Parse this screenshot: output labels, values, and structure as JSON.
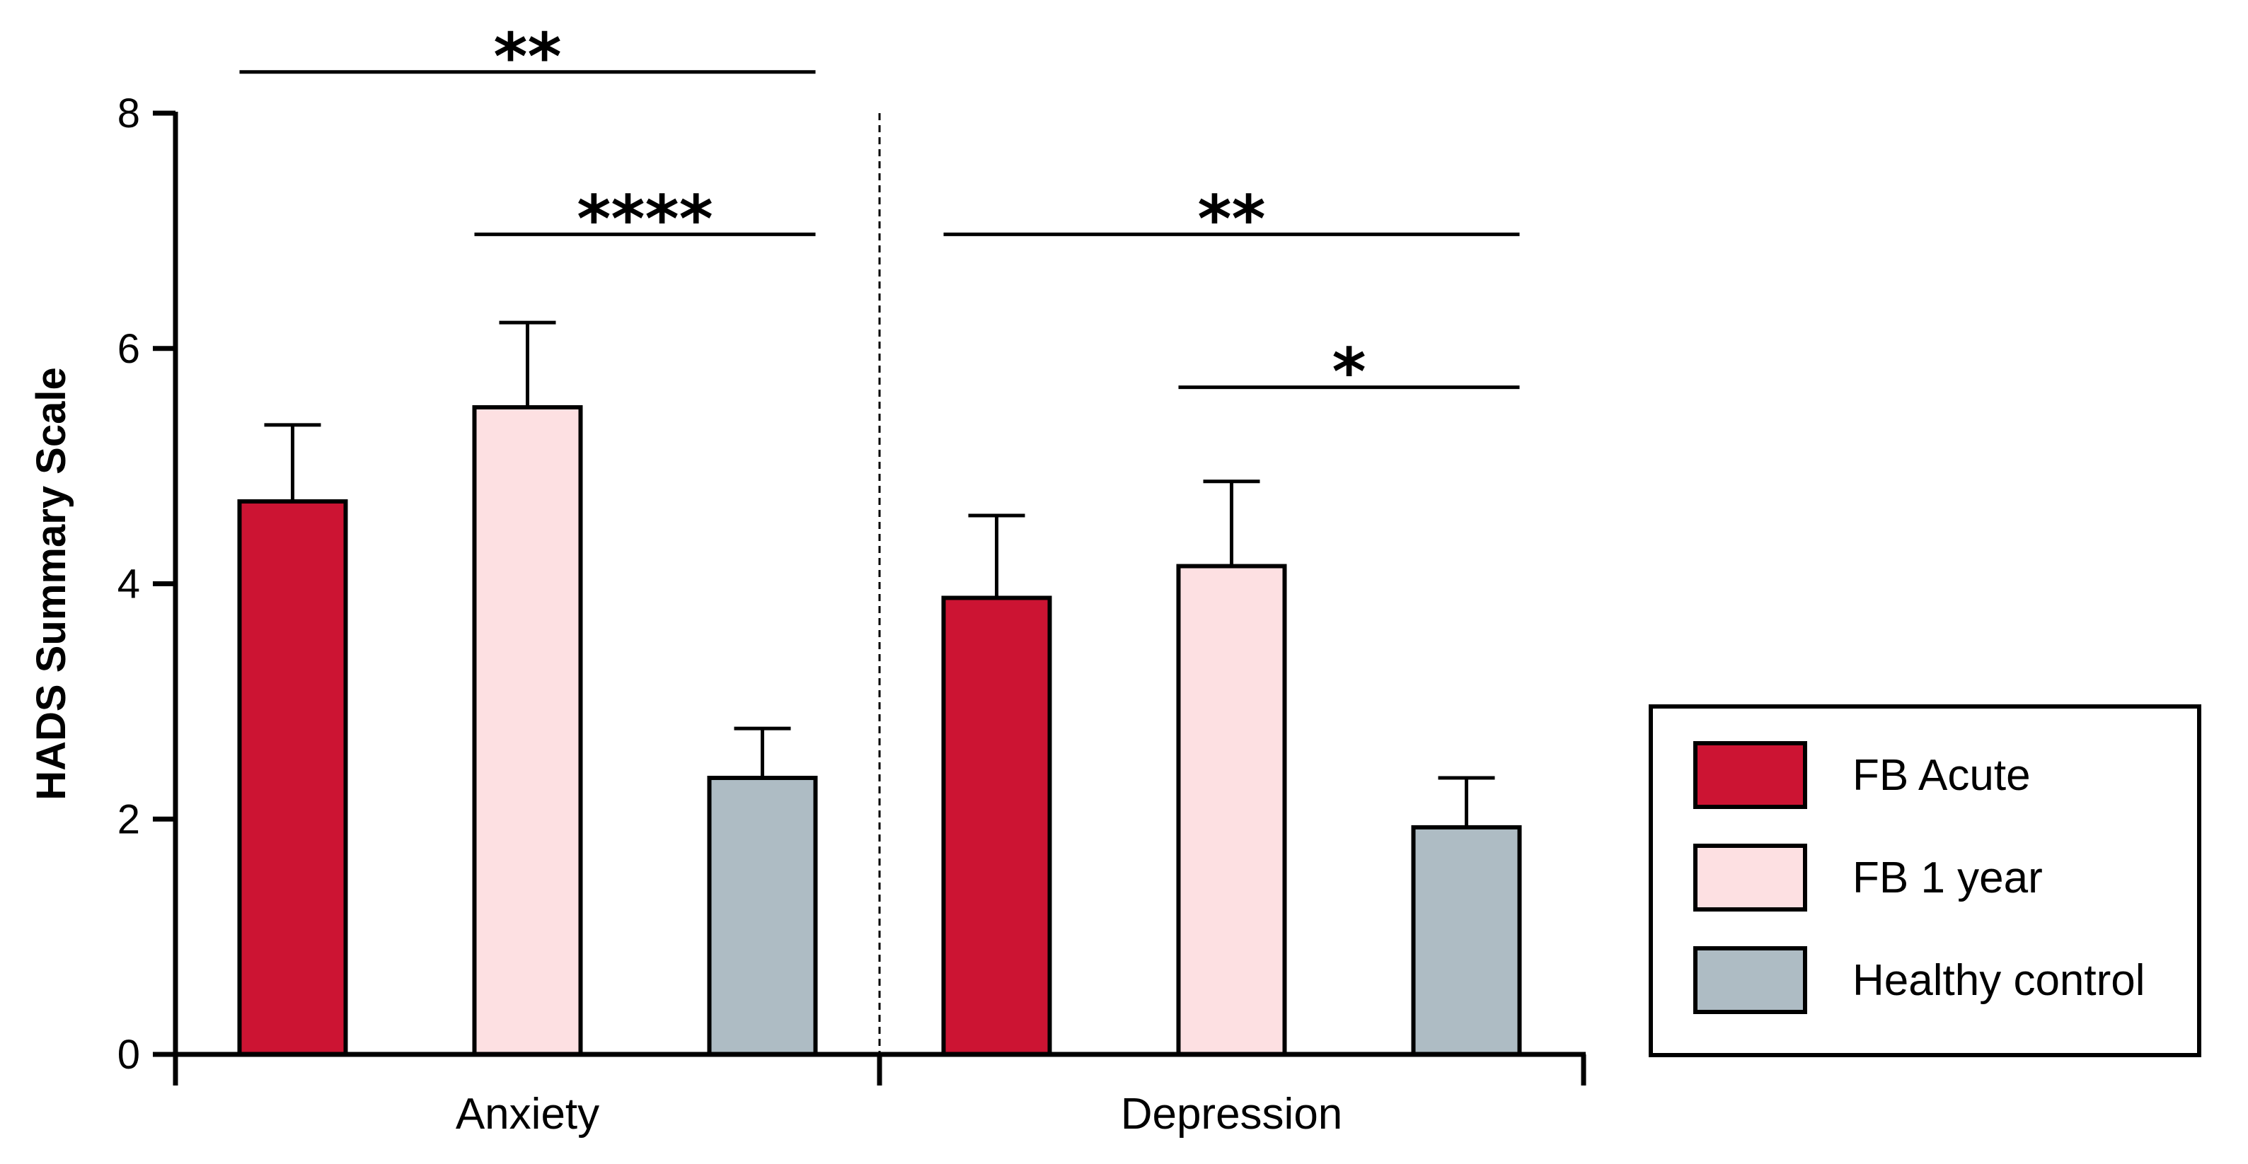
{
  "chart_data": {
    "type": "bar",
    "categories": [
      "Anxiety",
      "Depression"
    ],
    "ylabel": "HADS Summary Scale",
    "xlabel": "",
    "ylim": [
      0,
      8
    ],
    "yticks": [
      0,
      2,
      4,
      6,
      8
    ],
    "legend_position": "right",
    "series": [
      {
        "name": "FB Acute",
        "color": "#cc1433",
        "values": [
          4.7,
          3.88
        ],
        "errors": [
          0.65,
          0.7
        ]
      },
      {
        "name": "FB 1 year",
        "color": "#fde0e2",
        "values": [
          5.5,
          4.15
        ],
        "errors": [
          0.72,
          0.72
        ]
      },
      {
        "name": "Healthy control",
        "color": "#aebcc4",
        "values": [
          2.35,
          1.93
        ],
        "errors": [
          0.42,
          0.42
        ]
      }
    ],
    "significance": [
      {
        "category": "Anxiety",
        "from": "FB Acute",
        "to": "Healthy control",
        "y": 8.35,
        "label": "**"
      },
      {
        "category": "Anxiety",
        "from": "FB 1 year",
        "to": "Healthy control",
        "y": 6.97,
        "label": "****"
      },
      {
        "category": "Depression",
        "from": "FB Acute",
        "to": "Healthy control",
        "y": 6.97,
        "label": "**"
      },
      {
        "category": "Depression",
        "from": "FB 1 year",
        "to": "Healthy control",
        "y": 5.67,
        "label": "*"
      }
    ]
  }
}
